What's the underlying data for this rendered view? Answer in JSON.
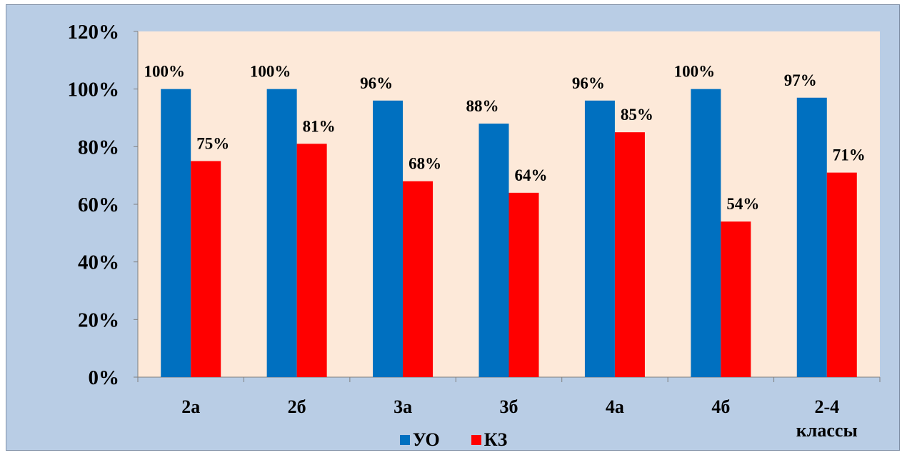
{
  "chart_data": {
    "type": "bar",
    "categories": [
      "2а",
      "2б",
      "3а",
      "3б",
      "4а",
      "4б",
      "2-4 классы"
    ],
    "series": [
      {
        "name": "УО",
        "color": "#0070c0",
        "values": [
          100,
          100,
          96,
          88,
          96,
          100,
          97
        ],
        "labels": [
          "100%",
          "100%",
          "96%",
          "88%",
          "96%",
          "100%",
          "97%"
        ]
      },
      {
        "name": "КЗ",
        "color": "#ff0000",
        "values": [
          75,
          81,
          68,
          64,
          85,
          54,
          71
        ],
        "labels": [
          "75%",
          "81%",
          "68%",
          "64%",
          "85%",
          "54%",
          "71%"
        ]
      }
    ],
    "ylim": [
      0,
      120
    ],
    "yticks": [
      "0%",
      "20%",
      "40%",
      "60%",
      "80%",
      "100%",
      "120%"
    ],
    "plot_background": "#fde9d9",
    "chart_background": "#b9cde5",
    "legend_position": "bottom",
    "grid": false
  }
}
